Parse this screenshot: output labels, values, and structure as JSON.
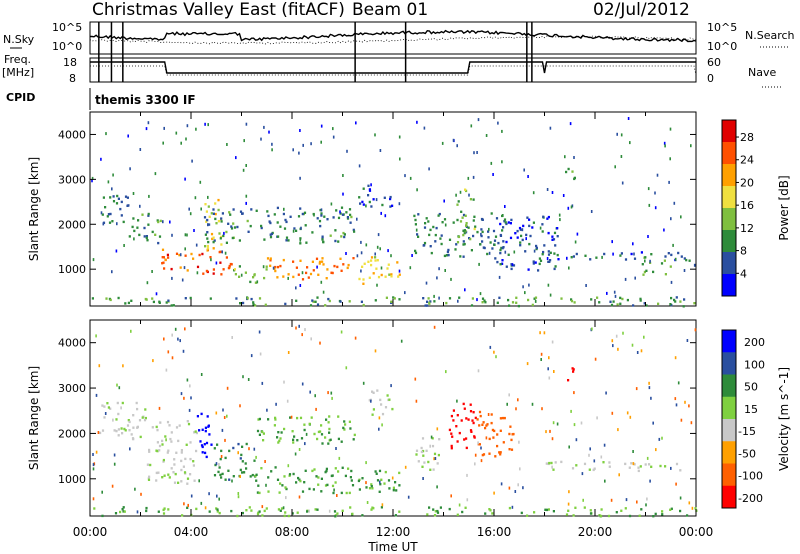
{
  "header": {
    "title": "Christmas Valley East (fitACF)",
    "beam": "Beam 01",
    "date": "02/Jul/2012"
  },
  "summary": {
    "nsky_label": "N.Sky",
    "nsearch_label": "N.Search",
    "freq_label_1": "Freq.",
    "freq_label_2": "[MHz]",
    "nave_label": "Nave",
    "cpid_label": "CPID",
    "cpid_value": "themis 3300 IF",
    "noise_ticks": [
      "10^5",
      "10^0"
    ],
    "freq_ticks": [
      "18",
      "8"
    ],
    "nave_ticks": [
      "60",
      "0"
    ]
  },
  "chart_data": [
    {
      "type": "heatmap",
      "name": "power",
      "ylabel": "Slant Range [km]",
      "xlabel": "Time UT",
      "x_ticks": [
        "00:00",
        "04:00",
        "08:00",
        "12:00",
        "16:00",
        "20:00",
        "00:00"
      ],
      "y_ticks": [
        1000,
        2000,
        3000,
        4000
      ],
      "ylim": [
        180,
        4500
      ],
      "xlim_hours": [
        0,
        24
      ],
      "colorbar": {
        "label": "Power [dB]",
        "ticks": [
          4,
          8,
          12,
          16,
          20,
          24,
          28
        ],
        "range": [
          0,
          31
        ],
        "colors": [
          "#0000ff",
          "#2a4f9f",
          "#2e8b3a",
          "#7fbf3f",
          "#f0e040",
          "#ffa000",
          "#ff5000",
          "#e00000"
        ]
      },
      "regions": [
        {
          "t": [
            0.2,
            1.5
          ],
          "r": [
            2000,
            2700
          ],
          "val": 8
        },
        {
          "t": [
            1.5,
            2.8
          ],
          "r": [
            1600,
            2300
          ],
          "val": 10
        },
        {
          "t": [
            2.8,
            4.2
          ],
          "r": [
            1000,
            1500
          ],
          "val": 25
        },
        {
          "t": [
            4.2,
            5.6
          ],
          "r": [
            900,
            1500
          ],
          "val": 27
        },
        {
          "t": [
            4.5,
            5.2
          ],
          "r": [
            1400,
            2600
          ],
          "val": 18
        },
        {
          "t": [
            5.6,
            7.0
          ],
          "r": [
            700,
            1100
          ],
          "val": 14
        },
        {
          "t": [
            7.0,
            10.5
          ],
          "r": [
            800,
            1300
          ],
          "val": 24
        },
        {
          "t": [
            4.5,
            10.5
          ],
          "r": [
            1600,
            2400
          ],
          "val": 9
        },
        {
          "t": [
            10.6,
            12.3
          ],
          "r": [
            700,
            1300
          ],
          "val": 19
        },
        {
          "t": [
            10.6,
            12.0
          ],
          "r": [
            2400,
            2900
          ],
          "val": 6
        },
        {
          "t": [
            12.8,
            16.5
          ],
          "r": [
            1300,
            2300
          ],
          "val": 8
        },
        {
          "t": [
            14.5,
            15.2
          ],
          "r": [
            1600,
            2800
          ],
          "val": 13
        },
        {
          "t": [
            16.0,
            18.5
          ],
          "r": [
            1000,
            2200
          ],
          "val": 6
        },
        {
          "t": [
            17.8,
            23.8
          ],
          "r": [
            1200,
            1400
          ],
          "val": 7
        },
        {
          "t": [
            18.8,
            19.2
          ],
          "r": [
            3000,
            3500
          ],
          "val": 12
        },
        {
          "t": [
            21.8,
            23.0
          ],
          "r": [
            900,
            1300
          ],
          "val": 12
        },
        {
          "t": [
            0.0,
            24.0
          ],
          "r": [
            200,
            400
          ],
          "val": 10
        }
      ]
    },
    {
      "type": "heatmap",
      "name": "velocity",
      "ylabel": "Slant Range [km]",
      "xlabel": "Time UT",
      "x_ticks": [
        "00:00",
        "04:00",
        "08:00",
        "12:00",
        "16:00",
        "20:00",
        "00:00"
      ],
      "y_ticks": [
        1000,
        2000,
        3000,
        4000
      ],
      "ylim": [
        180,
        4500
      ],
      "xlim_hours": [
        0,
        24
      ],
      "colorbar": {
        "label": "Velocity [m s^-1]",
        "tick_labels": [
          "200",
          "100",
          "50",
          "15",
          "-15",
          "-50",
          "-100",
          "-200"
        ],
        "colors": [
          "#0000ff",
          "#2a4f9f",
          "#2e8b3a",
          "#7fd040",
          "#c8c8c8",
          "#ffa000",
          "#ff6000",
          "#ff0000"
        ]
      },
      "regions": [
        {
          "t": [
            0.2,
            2.2
          ],
          "r": [
            1900,
            2700
          ],
          "val": -10
        },
        {
          "t": [
            2.2,
            4.2
          ],
          "r": [
            900,
            2300
          ],
          "val": -10
        },
        {
          "t": [
            4.2,
            4.8
          ],
          "r": [
            1300,
            2600
          ],
          "val": 200
        },
        {
          "t": [
            4.8,
            6.5
          ],
          "r": [
            1000,
            1800
          ],
          "val": 60
        },
        {
          "t": [
            6.5,
            10.5
          ],
          "r": [
            700,
            1300
          ],
          "val": 40
        },
        {
          "t": [
            6.5,
            10.5
          ],
          "r": [
            1800,
            2400
          ],
          "val": 30
        },
        {
          "t": [
            10.6,
            12.3
          ],
          "r": [
            700,
            1300
          ],
          "val": 40
        },
        {
          "t": [
            11.0,
            12.0
          ],
          "r": [
            2400,
            3000
          ],
          "val": 0
        },
        {
          "t": [
            12.8,
            13.8
          ],
          "r": [
            1200,
            2000
          ],
          "val": 0
        },
        {
          "t": [
            14.2,
            15.3
          ],
          "r": [
            1600,
            2700
          ],
          "val": -200
        },
        {
          "t": [
            15.3,
            16.8
          ],
          "r": [
            1500,
            2500
          ],
          "val": -120
        },
        {
          "t": [
            17.8,
            23.8
          ],
          "r": [
            1200,
            1400
          ],
          "val": 0
        },
        {
          "t": [
            18.8,
            19.2
          ],
          "r": [
            3100,
            3500
          ],
          "val": -200
        },
        {
          "t": [
            0.0,
            24.0
          ],
          "r": [
            200,
            400
          ],
          "val": 30
        }
      ]
    }
  ]
}
